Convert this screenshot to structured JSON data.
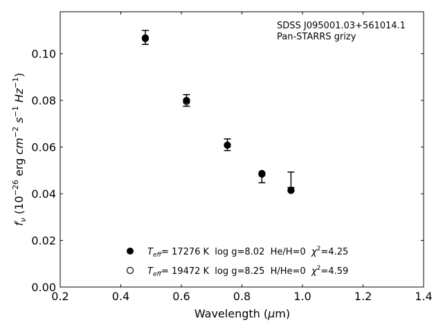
{
  "chart_data": {
    "type": "scatter",
    "xlabel": "Wavelength (μm)",
    "ylabel": "f_ν (10^-26 erg cm^-2 s^-1 Hz^-1)",
    "xlim": [
      0.2,
      1.4
    ],
    "ylim": [
      0.0,
      0.118
    ],
    "x_ticks": [
      0.2,
      0.4,
      0.6,
      0.8,
      1.0,
      1.2,
      1.4
    ],
    "x_tick_labels": [
      "0.2",
      "0.4",
      "0.6",
      "0.8",
      "1.0",
      "1.2",
      "1.4"
    ],
    "y_ticks": [
      0.0,
      0.02,
      0.04,
      0.06,
      0.08,
      0.1
    ],
    "y_tick_labels": [
      "0.00",
      "0.02",
      "0.04",
      "0.06",
      "0.08",
      "0.10"
    ],
    "grid": false,
    "annotations": [
      "SDSS J095001.03+561014.1",
      "Pan-STARRS grizy"
    ],
    "observed": {
      "bands": [
        "g",
        "r",
        "i",
        "z",
        "y"
      ],
      "x": [
        0.481,
        0.617,
        0.752,
        0.866,
        0.962
      ],
      "y": [
        0.107,
        0.08,
        0.061,
        0.0465,
        0.046
      ],
      "yerr": [
        0.003,
        0.0025,
        0.0025,
        0.0018,
        0.0033
      ]
    },
    "series": [
      {
        "name": "Teff= 17276 K  log g=8.02  He/H=0  χ²=4.25",
        "marker": "filled-circle",
        "x": [
          0.481,
          0.617,
          0.752,
          0.866,
          0.962
        ],
        "y": [
          0.1068,
          0.08,
          0.0608,
          0.0484,
          0.0414
        ]
      },
      {
        "name": "Teff= 19472 K  log g=8.25  H/He=0  χ²=4.59",
        "marker": "open-circle",
        "x": [
          0.481,
          0.617,
          0.752,
          0.866,
          0.962
        ],
        "y": [
          0.1065,
          0.0795,
          0.0608,
          0.0487,
          0.0415
        ]
      }
    ],
    "legend": {
      "placement": "lower-center",
      "entries": [
        {
          "marker": "filled-circle",
          "teff_prefix": "T",
          "teff_sub": "eff",
          "teff_rest": "= 17276 K  log g=8.02  He/H=0  ",
          "chi": "χ",
          "chi_sup": "2",
          "chi_rest": "=4.25"
        },
        {
          "marker": "open-circle",
          "teff_prefix": "T",
          "teff_sub": "eff",
          "teff_rest": "= 19472 K  log g=8.25  H/He=0  ",
          "chi": "χ",
          "chi_sup": "2",
          "chi_rest": "=4.59"
        }
      ]
    },
    "xlabel_parts": {
      "main": "Wavelength (",
      "mu": "μ",
      "unit": "m)"
    },
    "ylabel_parts": {
      "f": "f",
      "nu": "ν",
      "open": " (10",
      "exp1": "−26",
      "erg": " erg ",
      "cm": "cm",
      "exp2": "−2",
      "s": "s",
      "exp3": "−1",
      "hz": "Hz",
      "exp4": "−1",
      "close": ")"
    }
  }
}
